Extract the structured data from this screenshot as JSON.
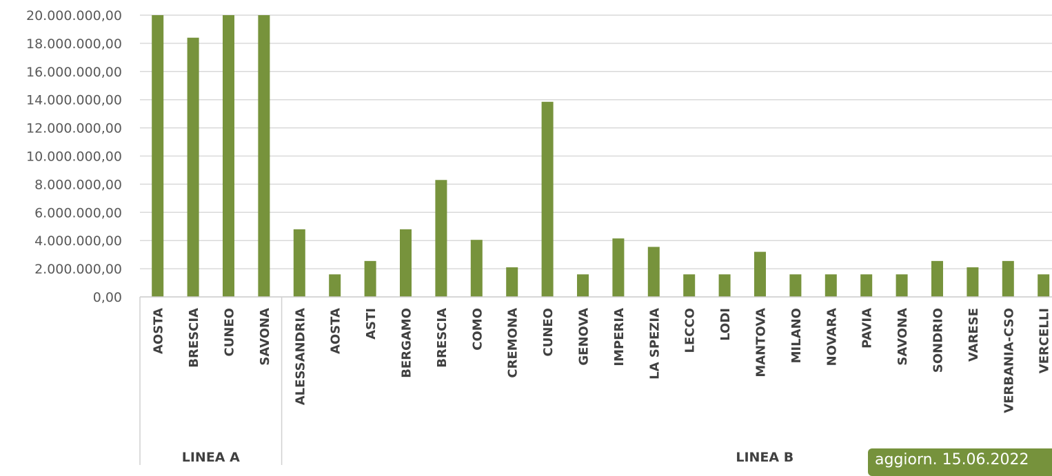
{
  "chart_data": {
    "type": "bar",
    "title": "",
    "xlabel": "",
    "ylabel": "",
    "ylim": [
      0,
      20000000
    ],
    "yticks": [
      "0,00",
      "2.000.000,00",
      "4.000.000,00",
      "6.000.000,00",
      "8.000.000,00",
      "10.000.000,00",
      "12.000.000,00",
      "14.000.000,00",
      "16.000.000,00",
      "18.000.000,00",
      "20.000.000,00"
    ],
    "grid": true,
    "bar_color": "#77933c",
    "groups": [
      {
        "name": "LINEA A",
        "categories": [
          "AOSTA",
          "BRESCIA",
          "CUNEO",
          "SAVONA"
        ],
        "values": [
          20000000,
          18400000,
          20000000,
          20000000
        ]
      },
      {
        "name": "LINEA B",
        "categories": [
          "ALESSANDRIA",
          "AOSTA",
          "ASTI",
          "BERGAMO",
          "BRESCIA",
          "COMO",
          "CREMONA",
          "CUNEO",
          "GENOVA",
          "IMPERIA",
          "LA SPEZIA",
          "LECCO",
          "LODI",
          "MANTOVA",
          "MILANO",
          "NOVARA",
          "PAVIA",
          "SAVONA",
          "SONDRIO",
          "VARESE",
          "VERBANIA-CSO",
          "VERCELLI"
        ],
        "values": [
          4800000,
          1600000,
          2550000,
          4800000,
          8300000,
          4050000,
          2100000,
          13850000,
          1600000,
          4150000,
          3550000,
          1600000,
          1600000,
          3200000,
          1600000,
          1600000,
          1600000,
          1600000,
          2550000,
          2100000,
          2550000,
          1600000
        ]
      }
    ]
  },
  "badge": {
    "text": "aggiorn. 15.06.2022"
  }
}
